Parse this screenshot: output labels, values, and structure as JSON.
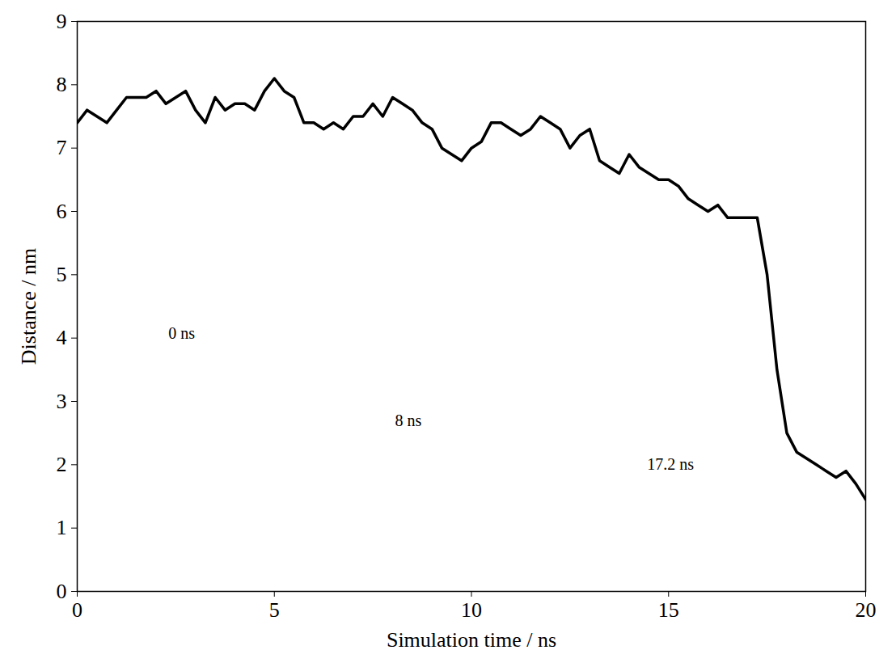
{
  "chart_data": {
    "type": "line",
    "xlabel": "Simulation time / ns",
    "ylabel": "Distance / nm",
    "x": [
      0,
      0.25,
      0.5,
      0.75,
      1,
      1.25,
      1.5,
      1.75,
      2,
      2.25,
      2.5,
      2.75,
      3,
      3.25,
      3.5,
      3.75,
      4,
      4.25,
      4.5,
      4.75,
      5,
      5.25,
      5.5,
      5.75,
      6,
      6.25,
      6.5,
      6.75,
      7,
      7.25,
      7.5,
      7.75,
      8,
      8.25,
      8.5,
      8.75,
      9,
      9.25,
      9.5,
      9.75,
      10,
      10.25,
      10.5,
      10.75,
      11,
      11.25,
      11.5,
      11.75,
      12,
      12.25,
      12.5,
      12.75,
      13,
      13.25,
      13.5,
      13.75,
      14,
      14.25,
      14.5,
      14.75,
      15,
      15.25,
      15.5,
      15.75,
      16,
      16.25,
      16.5,
      16.75,
      17,
      17.25,
      17.5,
      17.75,
      18,
      18.25,
      18.5,
      18.75,
      19,
      19.25,
      19.5,
      19.75,
      20
    ],
    "values": [
      7.4,
      7.6,
      7.5,
      7.4,
      7.6,
      7.8,
      7.8,
      7.8,
      7.9,
      7.7,
      7.8,
      7.9,
      7.6,
      7.4,
      7.8,
      7.6,
      7.7,
      7.7,
      7.6,
      7.9,
      8.1,
      7.9,
      7.8,
      7.4,
      7.4,
      7.3,
      7.4,
      7.3,
      7.5,
      7.5,
      7.7,
      7.5,
      7.8,
      7.7,
      7.6,
      7.4,
      7.3,
      7.0,
      6.9,
      6.8,
      7.0,
      7.1,
      7.4,
      7.4,
      7.3,
      7.2,
      7.3,
      7.5,
      7.4,
      7.3,
      7.0,
      7.2,
      7.3,
      6.8,
      6.7,
      6.6,
      6.9,
      6.7,
      6.6,
      6.5,
      6.5,
      6.4,
      6.2,
      6.1,
      6.0,
      6.1,
      5.9,
      5.9,
      5.9,
      5.9,
      5.0,
      3.5,
      2.5,
      2.2,
      2.1,
      2.0,
      1.9,
      1.8,
      1.9,
      1.7,
      1.45
    ],
    "color": "#000000",
    "xlim": [
      0,
      20
    ],
    "xticks": [
      0,
      5,
      10,
      15,
      20
    ],
    "ylim": [
      0,
      9
    ],
    "yticks": [
      0,
      1,
      2,
      3,
      4,
      5,
      6,
      7,
      8,
      9
    ],
    "annotations": [
      {
        "text": "0 ns",
        "x": 2.65,
        "y": 4.07
      },
      {
        "text": "8 ns",
        "x": 8.4,
        "y": 2.69
      },
      {
        "text": "17.2 ns",
        "x": 15.05,
        "y": 2.0
      }
    ]
  }
}
